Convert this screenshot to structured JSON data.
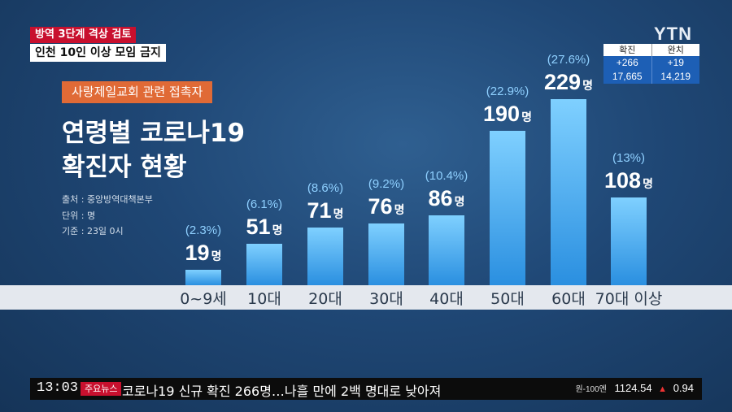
{
  "header": {
    "tag_top": "방역 3단계 격상 검토",
    "tag_main": "인천 10인 이상 모임 금지",
    "logo": "YTN"
  },
  "stats": {
    "confirmed_label": "확진",
    "recovered_label": "완치",
    "confirmed_delta": "+266",
    "recovered_delta": "+19",
    "confirmed_total": "17,665",
    "recovered_total": "14,219"
  },
  "graphic": {
    "subtitle": "사랑제일교회 관련 접촉자",
    "title_line1": "연령별 코로나19",
    "title_line2": "확진자 현황",
    "source": "출처 : 중앙방역대책본부",
    "unit": "단위 : 명",
    "basis": "기준 : 23일 0시"
  },
  "chart_data": {
    "type": "bar",
    "title": "연령별 코로나19 확진자 현황",
    "categories": [
      "0~9세",
      "10대",
      "20대",
      "30대",
      "40대",
      "50대",
      "60대",
      "70대 이상"
    ],
    "values": [
      19,
      51,
      71,
      76,
      86,
      190,
      229,
      108
    ],
    "value_labels": [
      "19",
      "51",
      "71",
      "76",
      "86",
      "190",
      "229",
      "108"
    ],
    "value_unit": "명",
    "percent_labels": [
      "(2.3%)",
      "(6.1%)",
      "(8.6%)",
      "(9.2%)",
      "(10.4%)",
      "(22.9%)",
      "(27.6%)",
      "(13%)"
    ],
    "colors": {
      "bar_top": "#7fd0ff",
      "bar_bottom": "#2a8fe0",
      "baseline_band": "#e4e8ee"
    }
  },
  "ticker": {
    "time": "13:03",
    "badge": "주요뉴스",
    "headline": "코로나19 신규 확진 266명…나흘 만에 2백 명대로 낮아져",
    "fx_label": "원-100엔",
    "fx_value": "1124.54",
    "fx_arrow": "▲",
    "fx_change": "0.94"
  }
}
